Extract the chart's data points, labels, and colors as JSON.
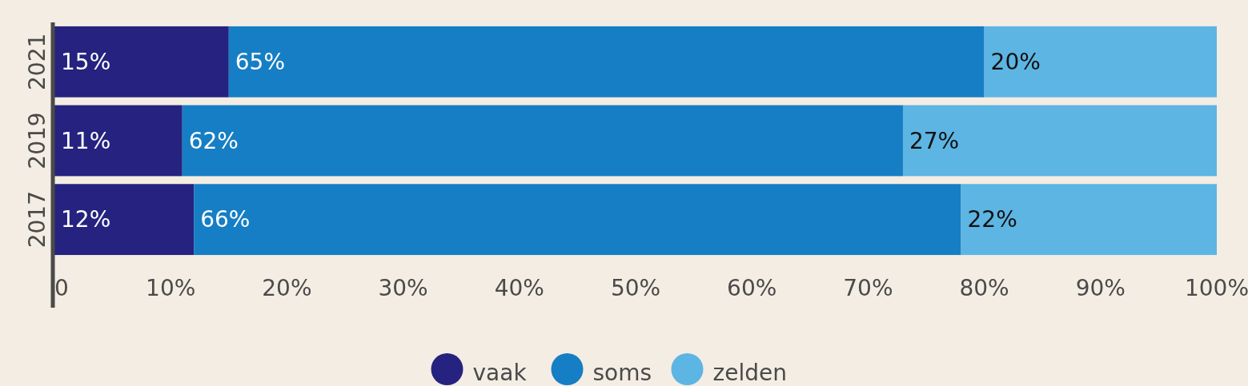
{
  "chart_data": {
    "type": "bar",
    "orientation": "horizontal",
    "stacked": true,
    "categories": [
      "2021",
      "2019",
      "2017"
    ],
    "series": [
      {
        "name": "vaak",
        "color": "#25237f",
        "values": [
          15,
          11,
          12
        ]
      },
      {
        "name": "soms",
        "color": "#167ec4",
        "values": [
          65,
          62,
          66
        ]
      },
      {
        "name": "zelden",
        "color": "#5db5e3",
        "values": [
          20,
          27,
          22
        ]
      }
    ],
    "value_labels": [
      [
        "15%",
        "11%",
        "12%"
      ],
      [
        "65%",
        "62%",
        "66%"
      ],
      [
        "20%",
        "27%",
        "22%"
      ]
    ],
    "xlim": [
      0,
      100
    ],
    "xticks": [
      {
        "value": 0,
        "label": "0"
      },
      {
        "value": 10,
        "label": "10%"
      },
      {
        "value": 20,
        "label": "20%"
      },
      {
        "value": 30,
        "label": "30%"
      },
      {
        "value": 40,
        "label": "40%"
      },
      {
        "value": 50,
        "label": "50%"
      },
      {
        "value": 60,
        "label": "60%"
      },
      {
        "value": 70,
        "label": "70%"
      },
      {
        "value": 80,
        "label": "80%"
      },
      {
        "value": 90,
        "label": "90%"
      },
      {
        "value": 100,
        "label": "100%"
      }
    ],
    "grid": false,
    "legend": "bottom"
  }
}
